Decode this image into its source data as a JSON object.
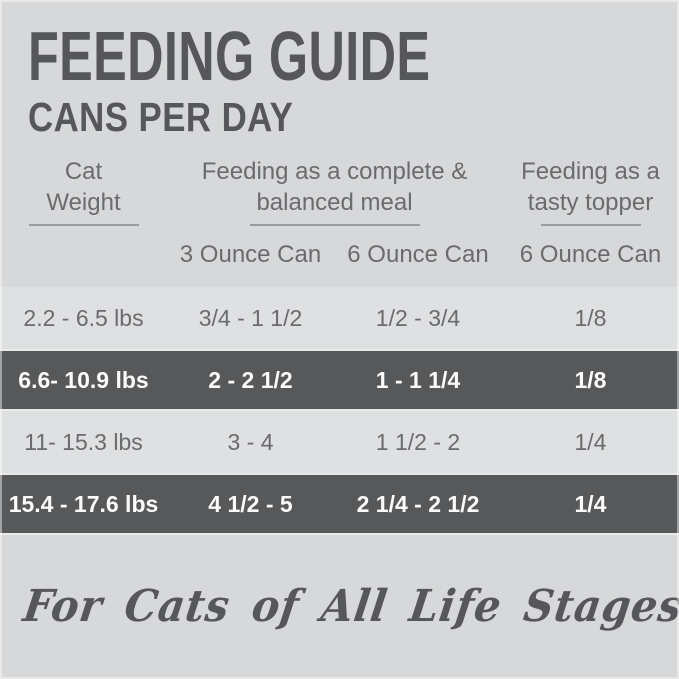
{
  "page": {
    "title": "FEEDING GUIDE",
    "subtitle": "CANS PER DAY",
    "footer_script": "For Cats of All Life Stages"
  },
  "table": {
    "header": {
      "weight": {
        "line1": "Cat",
        "line2": "Weight"
      },
      "complete": {
        "line1": "Feeding as a complete &",
        "line2": "balanced meal"
      },
      "topper": {
        "line1": "Feeding as a",
        "line2": "tasty topper"
      }
    },
    "sub_columns": [
      "3 Ounce Can",
      "6 Ounce Can",
      "6 Ounce Can"
    ],
    "rows": [
      {
        "highlighted": false,
        "cells": [
          "2.2 - 6.5 lbs",
          "3/4 - 1 1/2",
          "1/2 - 3/4",
          "1/8"
        ]
      },
      {
        "highlighted": true,
        "cells": [
          "6.6- 10.9 lbs",
          "2 - 2 1/2",
          "1 - 1 1/4",
          "1/8"
        ]
      },
      {
        "highlighted": false,
        "cells": [
          "11- 15.3 lbs",
          "3 - 4",
          "1 1/2 - 2",
          "1/4"
        ]
      },
      {
        "highlighted": true,
        "cells": [
          "15.4 - 17.6 lbs",
          "4 1/2 - 5",
          "2 1/4 - 2 1/2",
          "1/4"
        ]
      }
    ]
  },
  "colors": {
    "background": "#d7d8d9",
    "highlight_row_bg": "#57585a",
    "highlight_row_text": "#fafafa",
    "text_dark": "#56575a",
    "text_gray": "#6a6b6d",
    "underline": "#9a9b9d"
  }
}
